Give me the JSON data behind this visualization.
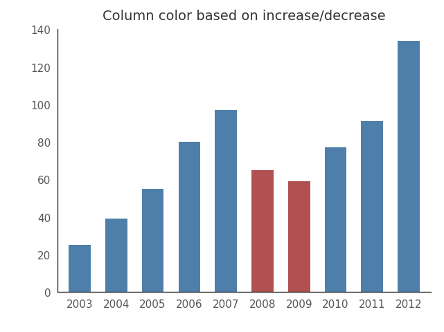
{
  "title": "Column color based on increase/decrease",
  "categories": [
    "2003",
    "2004",
    "2005",
    "2006",
    "2007",
    "2008",
    "2009",
    "2010",
    "2011",
    "2012"
  ],
  "values": [
    25,
    39,
    55,
    80,
    97,
    65,
    59,
    77,
    91,
    134
  ],
  "bar_colors": [
    "#4e7fab",
    "#4e7fab",
    "#4e7fab",
    "#4e7fab",
    "#4e7fab",
    "#b05050",
    "#b05050",
    "#4e7fab",
    "#4e7fab",
    "#4e7fab"
  ],
  "ylim": [
    0,
    140
  ],
  "yticks": [
    0,
    20,
    40,
    60,
    80,
    100,
    120,
    140
  ],
  "title_fontsize": 14,
  "tick_fontsize": 11,
  "background_color": "#ffffff",
  "bar_width": 0.6
}
